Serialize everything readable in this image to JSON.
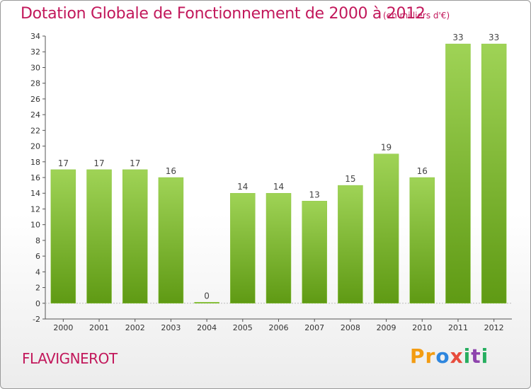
{
  "header": {
    "title": "Dotation Globale de Fonctionnement de 2000 à 2012",
    "subtitle": "(en milliers d'€)"
  },
  "footer": {
    "commune": "FLAVIGNEROT",
    "logo": [
      "P",
      "r",
      "o",
      "x",
      "i",
      "t",
      "i"
    ]
  },
  "colors": {
    "title": "#c2185b",
    "bar_light": "#9fd356",
    "bar_dark": "#5f9a14",
    "logo_letters": [
      "#f39c12",
      "#f39c12",
      "#2e86de",
      "#e74c3c",
      "#27ae60",
      "#8e44ad",
      "#27ae60"
    ]
  },
  "chart_data": {
    "type": "bar",
    "title": "Dotation Globale de Fonctionnement de 2000 à 2012",
    "subtitle": "(en milliers d'€)",
    "xlabel": "",
    "ylabel": "",
    "categories": [
      "2000",
      "2001",
      "2002",
      "2003",
      "2004",
      "2005",
      "2006",
      "2007",
      "2008",
      "2009",
      "2010",
      "2011",
      "2012"
    ],
    "values": [
      17,
      17,
      17,
      16,
      0,
      14,
      14,
      13,
      15,
      19,
      16,
      33,
      33
    ],
    "ylim": [
      -2,
      34
    ],
    "yticks": [
      -2,
      0,
      2,
      4,
      6,
      8,
      10,
      12,
      14,
      16,
      18,
      20,
      22,
      24,
      26,
      28,
      30,
      32,
      34
    ],
    "grid": false
  }
}
